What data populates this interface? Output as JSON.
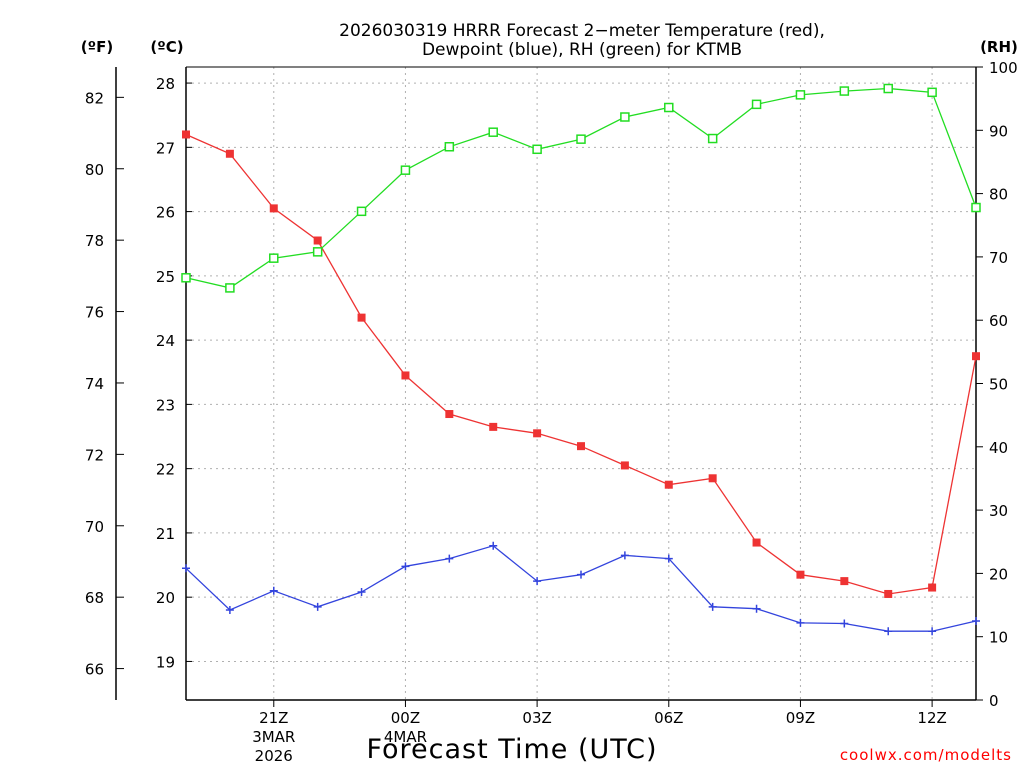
{
  "chart_data": {
    "type": "line",
    "title_lines": [
      "2026030319 HRRR Forecast 2−meter Temperature (red),",
      "Dewpoint (blue), RH (green) for KTMB"
    ],
    "xlabel": "Forecast Time (UTC)",
    "credit": "coolwx.com/modelts",
    "units": {
      "f": "(ºF)",
      "c": "(ºC)",
      "rh": "(RH)"
    },
    "x_hours": [
      19,
      20,
      21,
      22,
      23,
      24,
      25,
      26,
      27,
      28,
      29,
      30,
      31,
      32,
      33,
      34,
      35,
      36,
      37
    ],
    "x_range": [
      19,
      37
    ],
    "x_ticks": [
      {
        "hour": 21,
        "lines": [
          "21Z",
          "3MAR",
          "2026"
        ]
      },
      {
        "hour": 24,
        "lines": [
          "00Z",
          "4MAR"
        ]
      },
      {
        "hour": 27,
        "lines": [
          "03Z"
        ]
      },
      {
        "hour": 30,
        "lines": [
          "06Z"
        ]
      },
      {
        "hour": 33,
        "lines": [
          "09Z"
        ]
      },
      {
        "hour": 36,
        "lines": [
          "12Z"
        ]
      }
    ],
    "c_range": [
      18.4,
      28.25
    ],
    "c_ticks": [
      19,
      20,
      21,
      22,
      23,
      24,
      25,
      26,
      27,
      28
    ],
    "f_ticks": [
      66,
      68,
      70,
      72,
      74,
      76,
      78,
      80,
      82
    ],
    "rh_range": [
      0,
      100
    ],
    "rh_ticks": [
      0,
      10,
      20,
      30,
      40,
      50,
      60,
      70,
      80,
      90,
      100
    ],
    "series": [
      {
        "name": "Temperature",
        "axis": "c",
        "color": "#ee3333",
        "marker": "filled-square",
        "values": [
          27.2,
          26.9,
          26.05,
          25.55,
          24.35,
          23.45,
          22.85,
          22.65,
          22.55,
          22.35,
          22.05,
          21.75,
          21.85,
          20.85,
          20.35,
          20.25,
          20.05,
          20.15,
          23.75
        ]
      },
      {
        "name": "Dewpoint",
        "axis": "c",
        "color": "#3344dd",
        "marker": "plus",
        "values": [
          20.45,
          19.8,
          20.1,
          19.85,
          20.08,
          20.48,
          20.6,
          20.8,
          20.25,
          20.35,
          20.65,
          20.6,
          19.85,
          19.82,
          19.6,
          19.59,
          19.47,
          19.47,
          19.63
        ]
      },
      {
        "name": "RH",
        "axis": "rh",
        "color": "#22dd22",
        "marker": "open-square",
        "values": [
          66.7,
          65.1,
          69.8,
          70.8,
          77.2,
          83.7,
          87.4,
          89.7,
          87.0,
          88.6,
          92.1,
          93.6,
          88.7,
          94.1,
          95.6,
          96.2,
          96.6,
          96.0,
          77.8
        ]
      }
    ]
  }
}
